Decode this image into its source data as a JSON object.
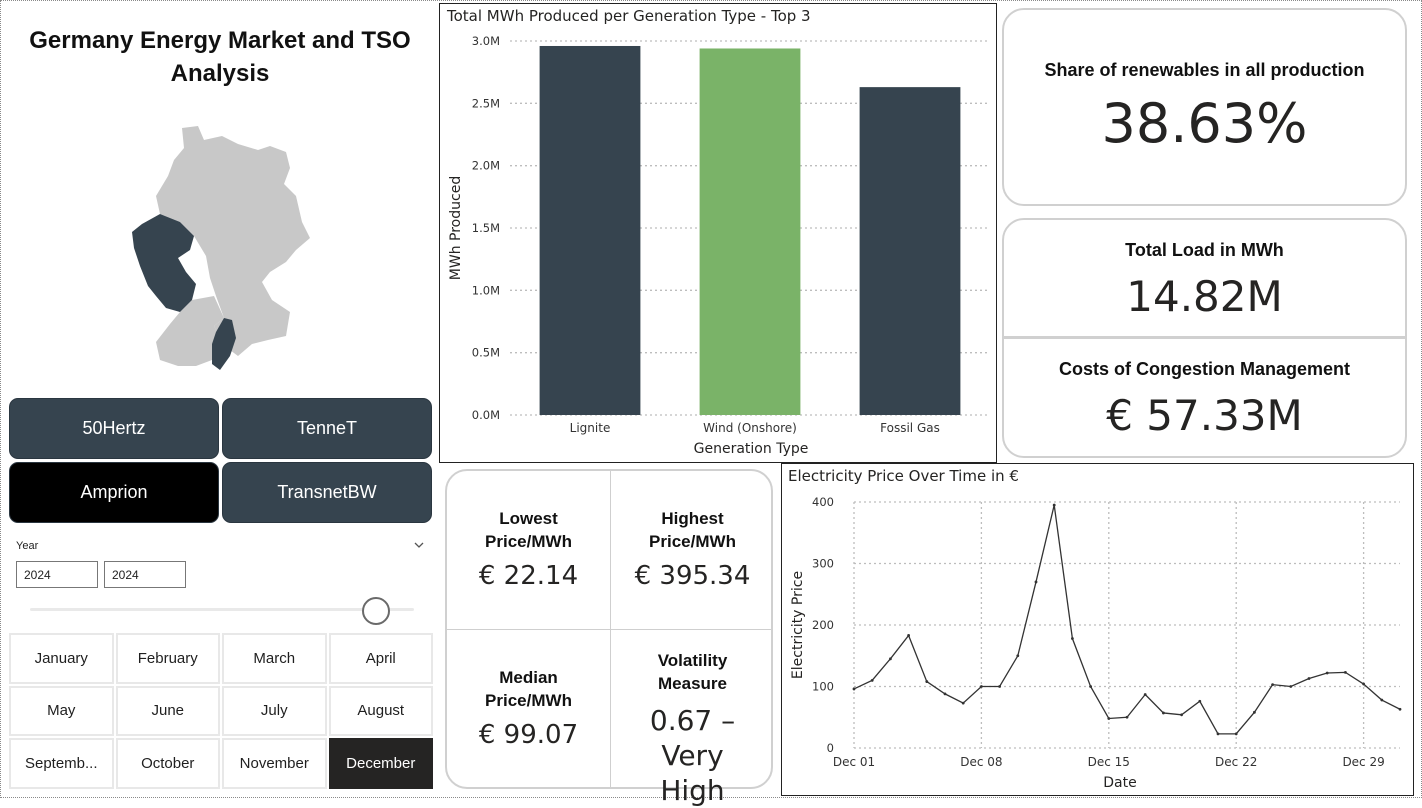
{
  "title": "Germany Energy Market and TSO Analysis",
  "colors": {
    "dark": "#36444f",
    "green": "#7ab368",
    "map_grey": "#c8c8c8",
    "selected": "#000000"
  },
  "tso_buttons": [
    {
      "label": "50Hertz",
      "selected": false
    },
    {
      "label": "TenneT",
      "selected": false
    },
    {
      "label": "Amprion",
      "selected": true
    },
    {
      "label": "TransnetBW",
      "selected": false
    }
  ],
  "year_filter": {
    "label": "Year",
    "from": "2024",
    "to": "2024"
  },
  "months": [
    {
      "label": "January",
      "selected": false
    },
    {
      "label": "February",
      "selected": false
    },
    {
      "label": "March",
      "selected": false
    },
    {
      "label": "April",
      "selected": false
    },
    {
      "label": "May",
      "selected": false
    },
    {
      "label": "June",
      "selected": false
    },
    {
      "label": "July",
      "selected": false
    },
    {
      "label": "August",
      "selected": false
    },
    {
      "label": "Septemb...",
      "selected": false
    },
    {
      "label": "October",
      "selected": false
    },
    {
      "label": "November",
      "selected": false
    },
    {
      "label": "December",
      "selected": true
    }
  ],
  "kpis": {
    "renewables": {
      "label": "Share of renewables in all production",
      "value": "38.63%"
    },
    "total_load": {
      "label": "Total Load in MWh",
      "value": "14.82M"
    },
    "congestion": {
      "label": "Costs of Congestion Management",
      "value": "€ 57.33M"
    }
  },
  "price_stats": {
    "lowest": {
      "label": "Lowest Price/MWh",
      "value": "€ 22.14"
    },
    "highest": {
      "label": "Highest Price/MWh",
      "value": "€ 395.34"
    },
    "median": {
      "label": "Median Price/MWh",
      "value": "€ 99.07"
    },
    "volatility": {
      "label": "Volatility Measure",
      "value": "0.67 – Very High"
    }
  },
  "chart_data": [
    {
      "type": "bar",
      "title": "Total MWh Produced per Generation Type - Top 3",
      "xlabel": "Generation Type",
      "ylabel": "MWh Produced",
      "categories": [
        "Lignite",
        "Wind (Onshore)",
        "Fossil Gas"
      ],
      "values": [
        2960000,
        2940000,
        2630000
      ],
      "colors": [
        "#36444f",
        "#7ab368",
        "#36444f"
      ],
      "ylim": [
        0,
        3000000
      ],
      "yticks": [
        0,
        500000,
        1000000,
        1500000,
        2000000,
        2500000,
        3000000
      ],
      "ytick_labels": [
        "0.0M",
        "0.5M",
        "1.0M",
        "1.5M",
        "2.0M",
        "2.5M",
        "3.0M"
      ],
      "grid": true
    },
    {
      "type": "line",
      "title": "Electricity Price Over Time in €",
      "xlabel": "Date",
      "ylabel": "Electricity Price",
      "x": [
        "2024-12-01",
        "2024-12-02",
        "2024-12-03",
        "2024-12-04",
        "2024-12-05",
        "2024-12-06",
        "2024-12-07",
        "2024-12-08",
        "2024-12-09",
        "2024-12-10",
        "2024-12-11",
        "2024-12-12",
        "2024-12-13",
        "2024-12-14",
        "2024-12-15",
        "2024-12-16",
        "2024-12-17",
        "2024-12-18",
        "2024-12-19",
        "2024-12-20",
        "2024-12-21",
        "2024-12-22",
        "2024-12-23",
        "2024-12-24",
        "2024-12-25",
        "2024-12-26",
        "2024-12-27",
        "2024-12-28",
        "2024-12-29",
        "2024-12-30",
        "2024-12-31"
      ],
      "values": [
        96,
        110,
        145,
        183,
        108,
        88,
        73,
        100,
        100,
        150,
        270,
        395,
        178,
        100,
        48,
        50,
        87,
        57,
        54,
        76,
        23,
        23,
        58,
        103,
        100,
        113,
        122,
        123,
        104,
        78,
        63
      ],
      "xticks": [
        "Dec 01",
        "Dec 08",
        "Dec 15",
        "Dec 22",
        "Dec 29"
      ],
      "yticks": [
        0,
        100,
        200,
        300,
        400
      ],
      "ylim": [
        0,
        400
      ],
      "grid": true
    }
  ]
}
